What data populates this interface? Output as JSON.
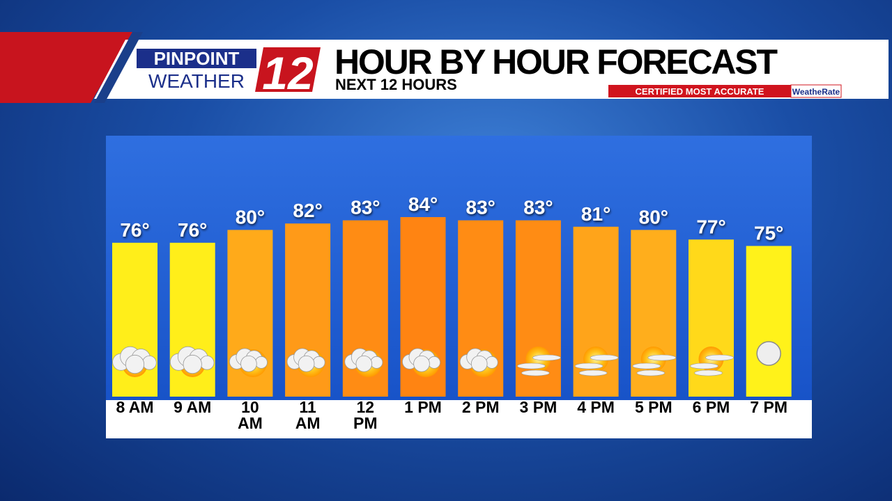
{
  "branding": {
    "logo_top": "PINPOINT",
    "logo_bottom": "WEATHER",
    "logo_number": "12",
    "badge": "CERTIFIED MOST ACCURATE",
    "badge_brand": "WeatheRate"
  },
  "chart_data": {
    "type": "bar",
    "title": "HOUR BY HOUR FORECAST",
    "subtitle": "NEXT 12 HOURS",
    "categories": [
      "8 AM",
      "9 AM",
      "10 AM",
      "11 AM",
      "12 PM",
      "1 PM",
      "2 PM",
      "3 PM",
      "4 PM",
      "5 PM",
      "6 PM",
      "7 PM"
    ],
    "values": [
      76,
      76,
      80,
      82,
      83,
      84,
      83,
      83,
      81,
      80,
      77,
      75
    ],
    "value_labels": [
      "76°",
      "76°",
      "80°",
      "82°",
      "83°",
      "84°",
      "83°",
      "83°",
      "81°",
      "80°",
      "77°",
      "75°"
    ],
    "colors": [
      "#ffee1a",
      "#ffee1a",
      "#ffaa1a",
      "#ff9a18",
      "#ff8c14",
      "#ff8412",
      "#ff8c14",
      "#ff8c14",
      "#ffa41a",
      "#ffae1c",
      "#ffd91a",
      "#fff21a"
    ],
    "ylim": [
      28,
      84
    ]
  }
}
